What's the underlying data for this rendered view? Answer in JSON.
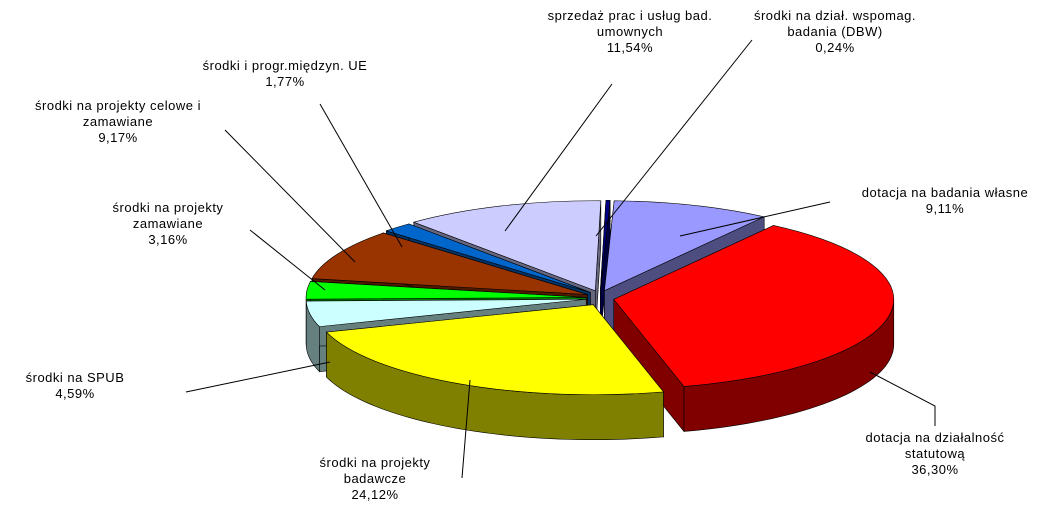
{
  "chart_data": {
    "type": "pie",
    "categories": [
      "dotacja na badania własne",
      "dotacja na działalność statutową",
      "środki na projekty badawcze",
      "środki na SPUB",
      "środki na projekty zamawiane",
      "środki na projekty celowe i zamawiane",
      "środki i progr.międzyn. UE",
      "sprzedaż prac i usług bad. umownych",
      "środki na dział. wspomag. badania (DBW)"
    ],
    "values": [
      9.11,
      36.3,
      24.12,
      4.59,
      3.16,
      9.17,
      1.77,
      11.54,
      0.24
    ],
    "value_labels": [
      "9,11%",
      "36,30%",
      "24,12%",
      "4,59%",
      "3,16%",
      "9,17%",
      "1,77%",
      "11,54%",
      "0,24%"
    ],
    "colors": [
      "#9999ff",
      "#ff0000",
      "#ffff00",
      "#ccffff",
      "#00ff00",
      "#993300",
      "#0066cc",
      "#ccccff",
      "#000080"
    ]
  }
}
